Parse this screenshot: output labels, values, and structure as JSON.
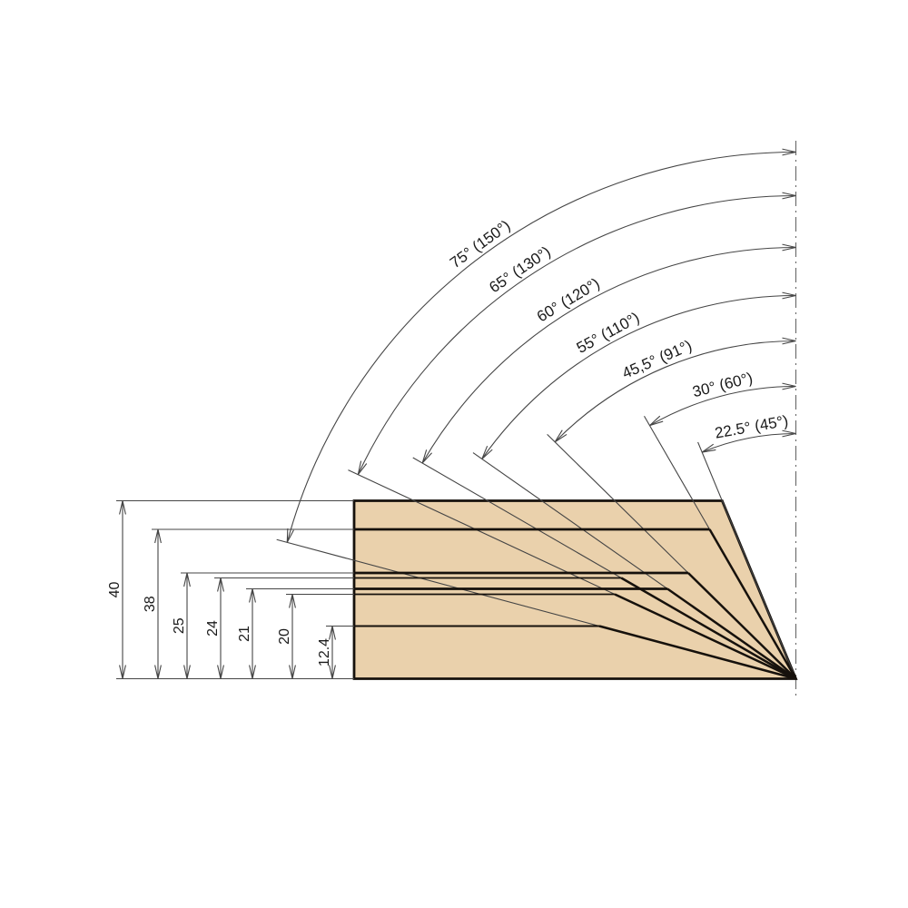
{
  "diagram": {
    "kind": "bevel-cutting-depth-diagram",
    "angles": [
      {
        "label": "75° (150°)",
        "bevel_deg": 75
      },
      {
        "label": "65° (130°)",
        "bevel_deg": 65
      },
      {
        "label": "60° (120°)",
        "bevel_deg": 60
      },
      {
        "label": "55° (110°)",
        "bevel_deg": 55
      },
      {
        "label": "45,5° (91°)",
        "bevel_deg": 45.5
      },
      {
        "label": "30° (60°)",
        "bevel_deg": 30
      },
      {
        "label": "22.5° (45°)",
        "bevel_deg": 22.5
      }
    ],
    "depths": [
      {
        "label": "40",
        "value": 40,
        "at_bevel_deg": 22.5
      },
      {
        "label": "38",
        "value": 38,
        "at_bevel_deg": 30
      },
      {
        "label": "25",
        "value": 25,
        "at_bevel_deg": 45.5
      },
      {
        "label": "24",
        "value": 24,
        "at_bevel_deg": 60
      },
      {
        "label": "21",
        "value": 21,
        "at_bevel_deg": 55
      },
      {
        "label": "20",
        "value": 20,
        "at_bevel_deg": 65
      },
      {
        "label": "12.4",
        "value": 12.4,
        "at_bevel_deg": 75
      }
    ],
    "colors": {
      "wood_fill": "#ead1ac",
      "thick_line": "#16110c",
      "thin_line": "#454545",
      "centerline": "#6f6f6f",
      "text": "#1a1a1a"
    }
  }
}
